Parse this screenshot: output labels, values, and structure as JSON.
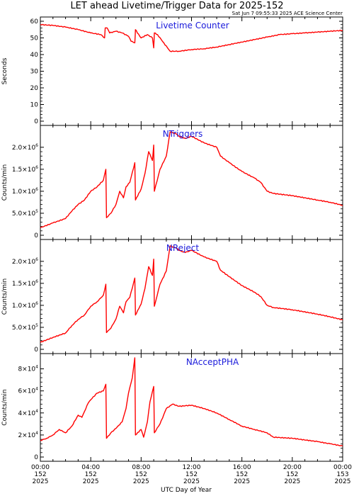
{
  "title": "LET ahead Livetime/Trigger Data for 2025-152",
  "timestamp": "Sat Jun  7 09:55:33 2025 ACE Science Center",
  "xlabel": "UTC Day of Year",
  "colors": {
    "line": "#ff0000",
    "label": "#1a1adb",
    "axis": "#000000"
  },
  "chart_data": [
    {
      "type": "line",
      "title": "Livetime Counter",
      "ylabel": "Seconds",
      "xlim": [
        0,
        24
      ],
      "ylim": [
        0,
        60
      ],
      "yticks": [
        0,
        10,
        20,
        30,
        40,
        50,
        60
      ],
      "ytick_labels": [
        "0",
        "10",
        "20",
        "30",
        "40",
        "50",
        "60"
      ],
      "series": [
        {
          "x": [
            0,
            1,
            2,
            3,
            4,
            4.8,
            5.1,
            5.15,
            5.3,
            5.5,
            6,
            6.5,
            7,
            7.2,
            7.5,
            7.55,
            7.7,
            8,
            8.5,
            8.9,
            9.0,
            9.05,
            9.3,
            9.8,
            10.3,
            11,
            12,
            13,
            14,
            15,
            16,
            17,
            18,
            19,
            20,
            21,
            22,
            23,
            24
          ],
          "y": [
            58,
            57.5,
            56.5,
            55,
            53,
            52,
            50,
            56,
            56,
            53,
            54,
            53,
            51,
            48,
            47,
            55,
            53,
            50,
            52,
            50,
            44,
            53,
            52,
            47,
            42,
            42,
            43,
            43.5,
            44.5,
            46,
            47.5,
            49,
            50.5,
            52,
            52.5,
            53,
            53.5,
            54,
            54.5
          ]
        }
      ]
    },
    {
      "type": "line",
      "title": "NTriggers",
      "ylabel": "Counts/min",
      "xlim": [
        0,
        24
      ],
      "ylim": [
        0,
        2400000
      ],
      "yticks": [
        0,
        500000,
        1000000,
        1500000,
        2000000
      ],
      "ytick_labels": [
        {
          "base": "0",
          "exp": ""
        },
        {
          "base": "5.0×10",
          "exp": "5"
        },
        {
          "base": "1.0×10",
          "exp": "6"
        },
        {
          "base": "1.5×10",
          "exp": "6"
        },
        {
          "base": "2.0×10",
          "exp": "6"
        }
      ],
      "series": [
        {
          "x": [
            0,
            1,
            2,
            2.5,
            3,
            3.5,
            4,
            4.5,
            5,
            5.2,
            5.25,
            5.6,
            6,
            6.3,
            6.6,
            6.8,
            7.1,
            7.5,
            7.55,
            8,
            8.3,
            8.6,
            8.9,
            9,
            9.05,
            9.5,
            10,
            10.3,
            10.8,
            11,
            11.5,
            12,
            13,
            14,
            14.3,
            15,
            16,
            17,
            17.5,
            18,
            18.5,
            20,
            22,
            23,
            24
          ],
          "y": [
            170000,
            280000,
            380000,
            550000,
            700000,
            800000,
            1000000,
            1100000,
            1250000,
            1500000,
            400000,
            500000,
            700000,
            1000000,
            850000,
            1100000,
            1200000,
            1650000,
            800000,
            1050000,
            1400000,
            1900000,
            1700000,
            2050000,
            1000000,
            1500000,
            1800000,
            2350000,
            2300000,
            2250000,
            2200000,
            2250000,
            2100000,
            2000000,
            1800000,
            1650000,
            1450000,
            1300000,
            1200000,
            1000000,
            950000,
            900000,
            800000,
            750000,
            680000
          ]
        }
      ]
    },
    {
      "type": "line",
      "title": "NReject",
      "ylabel": "Counts/min",
      "xlim": [
        0,
        24
      ],
      "ylim": [
        0,
        2400000
      ],
      "yticks": [
        0,
        500000,
        1000000,
        1500000,
        2000000
      ],
      "ytick_labels": [
        {
          "base": "0",
          "exp": ""
        },
        {
          "base": "5.0×10",
          "exp": "5"
        },
        {
          "base": "1.0×10",
          "exp": "6"
        },
        {
          "base": "1.5×10",
          "exp": "6"
        },
        {
          "base": "2.0×10",
          "exp": "6"
        }
      ],
      "series": [
        {
          "x": [
            0,
            1,
            2,
            2.5,
            3,
            3.5,
            4,
            4.5,
            5,
            5.2,
            5.25,
            5.6,
            6,
            6.3,
            6.6,
            6.8,
            7.1,
            7.5,
            7.55,
            8,
            8.3,
            8.6,
            8.9,
            9,
            9.05,
            9.5,
            10,
            10.3,
            10.8,
            11,
            11.5,
            12,
            13,
            14,
            14.3,
            15,
            16,
            17,
            17.5,
            18,
            18.5,
            20,
            22,
            23,
            24
          ],
          "y": [
            160000,
            270000,
            370000,
            540000,
            680000,
            780000,
            980000,
            1080000,
            1230000,
            1480000,
            380000,
            480000,
            690000,
            980000,
            830000,
            1080000,
            1180000,
            1620000,
            780000,
            1030000,
            1380000,
            1880000,
            1680000,
            2050000,
            980000,
            1480000,
            1780000,
            2350000,
            2300000,
            2250000,
            2200000,
            2250000,
            2100000,
            2000000,
            1800000,
            1650000,
            1450000,
            1300000,
            1200000,
            1000000,
            950000,
            900000,
            800000,
            740000,
            670000
          ]
        }
      ]
    },
    {
      "type": "line",
      "title": "NAcceptPHA",
      "ylabel": "Counts/min",
      "xlim": [
        0,
        24
      ],
      "ylim": [
        0,
        90000
      ],
      "yticks": [
        0,
        20000,
        40000,
        60000,
        80000
      ],
      "ytick_labels": [
        {
          "base": "0",
          "exp": ""
        },
        {
          "base": "2×10",
          "exp": "4"
        },
        {
          "base": "4×10",
          "exp": "4"
        },
        {
          "base": "6×10",
          "exp": "4"
        },
        {
          "base": "8×10",
          "exp": "4"
        }
      ],
      "series": [
        {
          "x": [
            0,
            0.5,
            1,
            1.5,
            2,
            2.5,
            3,
            3.3,
            3.8,
            4,
            4.5,
            5,
            5.2,
            5.25,
            5.6,
            6,
            6.5,
            6.8,
            7,
            7.3,
            7.5,
            7.55,
            8,
            8.2,
            8.5,
            8.7,
            9,
            9.05,
            9.5,
            10,
            10.5,
            11,
            12,
            13,
            14,
            15,
            16,
            17,
            18,
            18.5,
            20,
            22,
            23,
            24
          ],
          "y": [
            15000,
            17000,
            20000,
            25000,
            22000,
            28000,
            38000,
            36000,
            49000,
            52000,
            58000,
            60000,
            66000,
            17000,
            22000,
            26000,
            32000,
            44000,
            58000,
            72000,
            90000,
            20000,
            25000,
            18000,
            32000,
            50000,
            64000,
            22000,
            30000,
            44000,
            48000,
            46000,
            47000,
            44000,
            40000,
            34000,
            28000,
            25000,
            22000,
            18000,
            17000,
            14000,
            12000,
            10000
          ]
        }
      ]
    }
  ],
  "xticks": [
    {
      "time": "00:00",
      "doy": "152",
      "year": "2025"
    },
    {
      "time": "04:00",
      "doy": "152",
      "year": "2025"
    },
    {
      "time": "08:00",
      "doy": "152",
      "year": "2025"
    },
    {
      "time": "12:00",
      "doy": "152",
      "year": "2025"
    },
    {
      "time": "16:00",
      "doy": "152",
      "year": "2025"
    },
    {
      "time": "20:00",
      "doy": "152",
      "year": "2025"
    },
    {
      "time": "00:00",
      "doy": "153",
      "year": "2025"
    }
  ]
}
